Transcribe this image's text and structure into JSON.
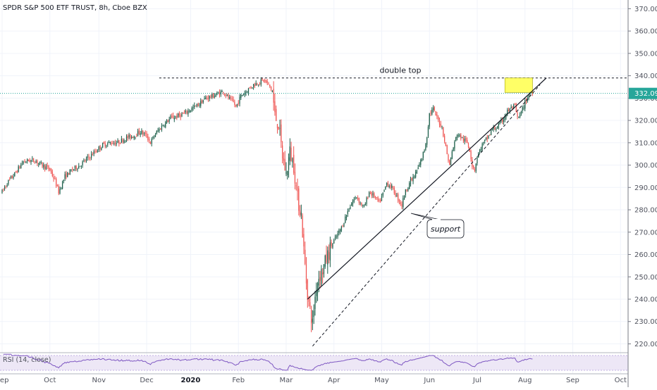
{
  "chart_data": {
    "type": "candlestick",
    "title": "SPDR S&P 500 ETF TRUST, 8h, Cboe BZX",
    "last_price": "332.09",
    "y_ticks": [
      "370.00",
      "360.00",
      "350.00",
      "340.00",
      "330.00",
      "320.00",
      "310.00",
      "300.00",
      "290.00",
      "280.00",
      "270.00",
      "260.00",
      "250.00",
      "240.00",
      "230.00",
      "220.00"
    ],
    "y_tick_values": [
      370,
      360,
      350,
      340,
      330,
      320,
      310,
      300,
      290,
      280,
      270,
      260,
      250,
      240,
      230,
      220
    ],
    "ylim": [
      217,
      372
    ],
    "x_ticks": [
      "Sep",
      "Oct",
      "Nov",
      "Dec",
      "2020",
      "Feb",
      "Mar",
      "Apr",
      "May",
      "Jun",
      "Jul",
      "Aug",
      "Sep",
      "Oct"
    ],
    "x_tick_index": [
      0,
      38,
      77,
      115,
      150,
      188,
      226,
      264,
      302,
      340,
      378,
      416,
      454,
      492
    ],
    "bar_count": 520,
    "price_path": [
      [
        0,
        288
      ],
      [
        4,
        292
      ],
      [
        10,
        296
      ],
      [
        16,
        301
      ],
      [
        20,
        302
      ],
      [
        26,
        302
      ],
      [
        32,
        300
      ],
      [
        38,
        298
      ],
      [
        42,
        293
      ],
      [
        45,
        288
      ],
      [
        50,
        295
      ],
      [
        56,
        298
      ],
      [
        62,
        300
      ],
      [
        68,
        303
      ],
      [
        74,
        306
      ],
      [
        80,
        309
      ],
      [
        86,
        310
      ],
      [
        92,
        310
      ],
      [
        98,
        312
      ],
      [
        104,
        313
      ],
      [
        110,
        315
      ],
      [
        115,
        313
      ],
      [
        118,
        310
      ],
      [
        122,
        314
      ],
      [
        128,
        318
      ],
      [
        134,
        321
      ],
      [
        140,
        322
      ],
      [
        145,
        323
      ],
      [
        150,
        325
      ],
      [
        156,
        327
      ],
      [
        162,
        330
      ],
      [
        168,
        331
      ],
      [
        172,
        332
      ],
      [
        176,
        333
      ],
      [
        180,
        330
      ],
      [
        184,
        328
      ],
      [
        186,
        326
      ],
      [
        190,
        331
      ],
      [
        196,
        334
      ],
      [
        200,
        336
      ],
      [
        204,
        337
      ],
      [
        208,
        338
      ],
      [
        212,
        336
      ],
      [
        215,
        333
      ],
      [
        217,
        322
      ],
      [
        220,
        318
      ],
      [
        223,
        304
      ],
      [
        226,
        296
      ],
      [
        229,
        306
      ],
      [
        232,
        300
      ],
      [
        235,
        285
      ],
      [
        238,
        278
      ],
      [
        240,
        262
      ],
      [
        242,
        248
      ],
      [
        244,
        238
      ],
      [
        246,
        232
      ],
      [
        247,
        229
      ],
      [
        248,
        236
      ],
      [
        250,
        246
      ],
      [
        252,
        250
      ],
      [
        255,
        253
      ],
      [
        258,
        258
      ],
      [
        262,
        264
      ],
      [
        266,
        268
      ],
      [
        270,
        272
      ],
      [
        274,
        278
      ],
      [
        278,
        283
      ],
      [
        282,
        286
      ],
      [
        285,
        283
      ],
      [
        288,
        281
      ],
      [
        292,
        288
      ],
      [
        296,
        286
      ],
      [
        300,
        283
      ],
      [
        303,
        287
      ],
      [
        306,
        292
      ],
      [
        310,
        290
      ],
      [
        314,
        286
      ],
      [
        318,
        282
      ],
      [
        320,
        287
      ],
      [
        324,
        292
      ],
      [
        328,
        295
      ],
      [
        332,
        300
      ],
      [
        336,
        307
      ],
      [
        338,
        313
      ],
      [
        340,
        323
      ],
      [
        343,
        325
      ],
      [
        346,
        321
      ],
      [
        350,
        317
      ],
      [
        354,
        305
      ],
      [
        356,
        300
      ],
      [
        358,
        306
      ],
      [
        362,
        314
      ],
      [
        366,
        312
      ],
      [
        370,
        310
      ],
      [
        372,
        307
      ],
      [
        374,
        300
      ],
      [
        376,
        298
      ],
      [
        378,
        304
      ],
      [
        382,
        309
      ],
      [
        386,
        312
      ],
      [
        390,
        316
      ],
      [
        394,
        317
      ],
      [
        398,
        320
      ],
      [
        402,
        324
      ],
      [
        406,
        326
      ],
      [
        408,
        326
      ],
      [
        410,
        321
      ],
      [
        412,
        322
      ],
      [
        414,
        325
      ],
      [
        416,
        328
      ],
      [
        418,
        330
      ],
      [
        420,
        333
      ],
      [
        422,
        332
      ]
    ],
    "annotations": {
      "double_top_label": "double top",
      "support_label": "support",
      "double_top_level": 339,
      "support_line_solid": [
        [
          243,
          240
        ],
        [
          433,
          339
        ]
      ],
      "support_line_dashed": [
        [
          247,
          219
        ],
        [
          428,
          336
        ]
      ],
      "highlight_box": {
        "x": [
          400,
          422
        ],
        "y": [
          332.5,
          339
        ]
      }
    },
    "rsi": {
      "label": "RSI (14, close)",
      "band": [
        30,
        70
      ]
    },
    "colors": {
      "up": "#26a69a",
      "down": "#ef5350",
      "up_dark": "#1b5e49",
      "down_dark": "#d32f2f",
      "grid": "#f0f3fa",
      "axis_line": "#787b86",
      "price_line": "#26a69a",
      "rsi_line": "#7e57c2",
      "rsi_band": "#ede7f6",
      "highlight": "#ffff66"
    },
    "grid": true
  }
}
